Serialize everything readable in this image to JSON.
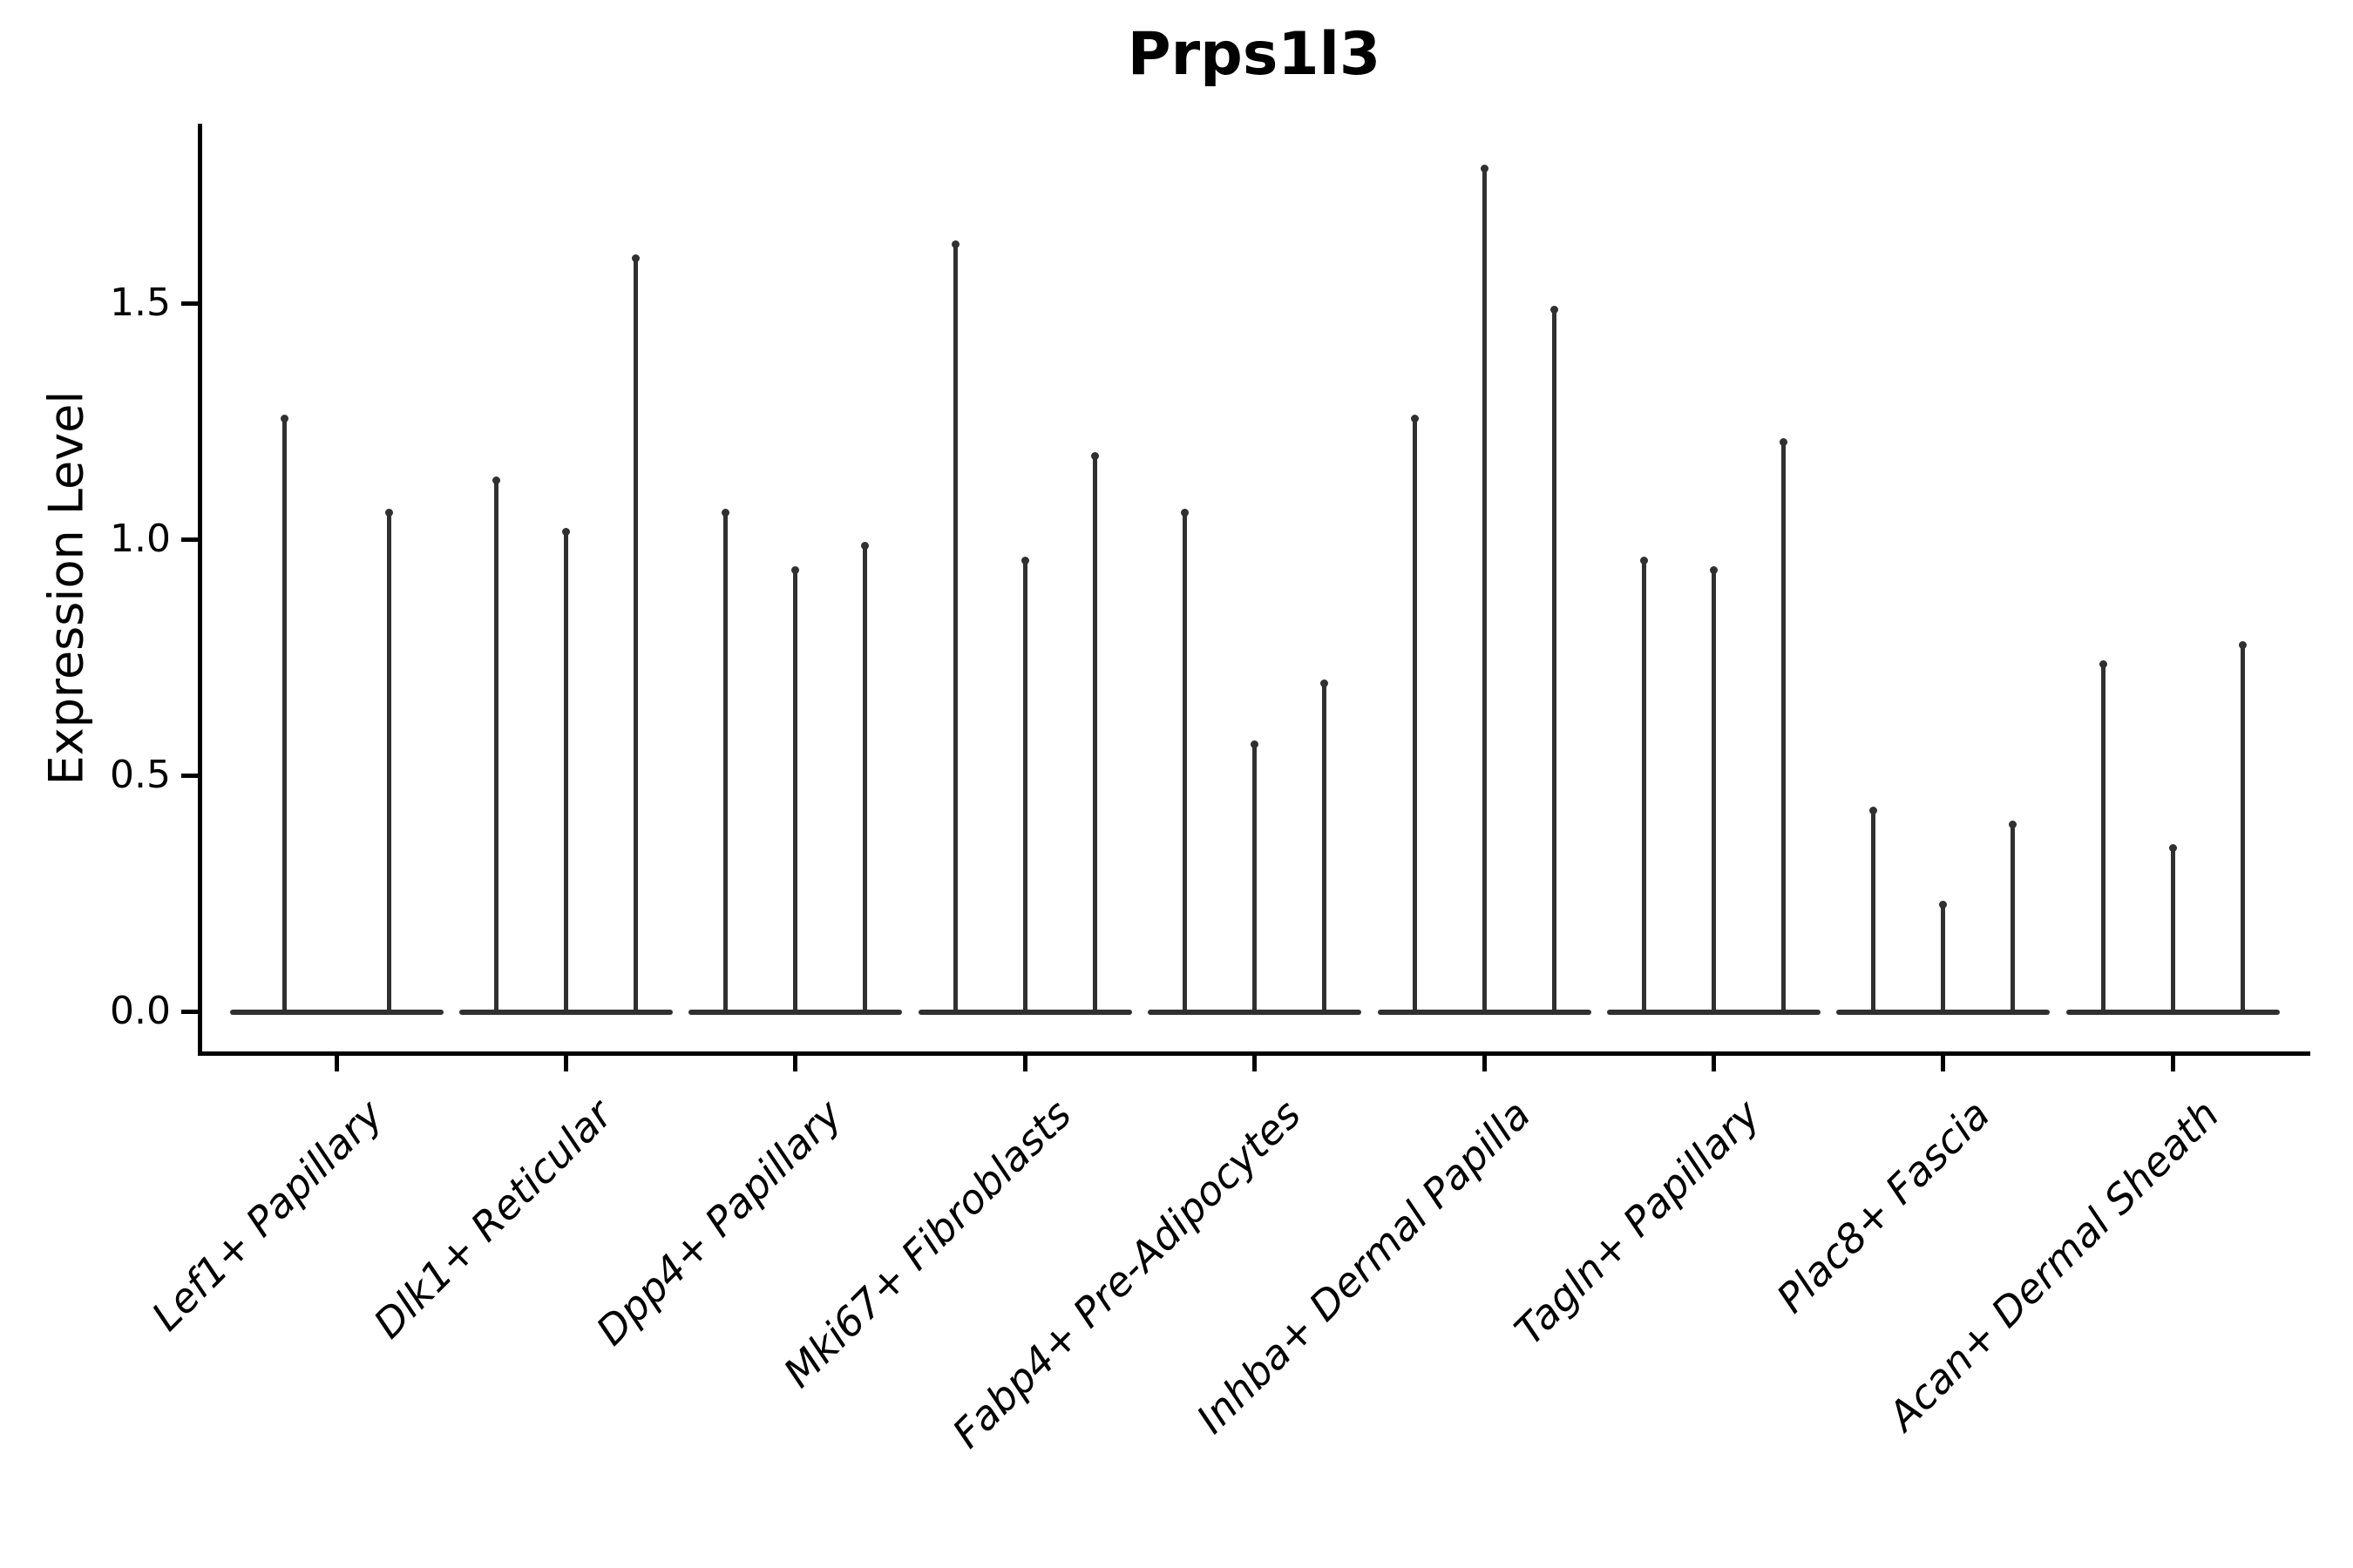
{
  "chart_data": {
    "type": "violin",
    "title": "Prps1l3",
    "ylabel": "Expression Level",
    "xlabel": "",
    "ylim": [
      -0.09,
      1.88
    ],
    "grid": false,
    "legend": "none",
    "ytick_values": [
      0.0,
      0.5,
      1.0,
      1.5
    ],
    "ytick_labels": [
      "0.0",
      "0.5",
      "1.0",
      "1.5"
    ],
    "description": "Violin plot of single-cell expression; each category shows narrow spike violins rising from a flat base at 0 up to the max expression value",
    "categories": [
      {
        "label": "Lef1+ Papillary",
        "violin_max": [
          1.26,
          1.06
        ]
      },
      {
        "label": "Dlk1+ Reticular",
        "violin_max": [
          1.13,
          1.02,
          1.6
        ]
      },
      {
        "label": "Dpp4+ Papillary",
        "violin_max": [
          1.06,
          0.94,
          0.99
        ]
      },
      {
        "label": "Mki67+ Fibroblasts",
        "violin_max": [
          1.63,
          0.96,
          1.18
        ]
      },
      {
        "label": "Fabp4+ Pre-Adipocytes",
        "violin_max": [
          1.06,
          0.57,
          0.7
        ]
      },
      {
        "label": "Inhba+ Dermal Papilla",
        "violin_max": [
          1.26,
          1.79,
          1.49
        ]
      },
      {
        "label": "Tagln+ Papillary",
        "violin_max": [
          0.96,
          0.94,
          1.21
        ]
      },
      {
        "label": "Plac8+ Fascia",
        "violin_max": [
          0.43,
          0.23,
          0.4
        ]
      },
      {
        "label": "Acan+ Dermal Sheath",
        "violin_max": [
          0.74,
          0.35,
          0.78
        ]
      }
    ],
    "colors": {
      "violin": "#303030",
      "axis": "#000000",
      "background": "#ffffff"
    }
  }
}
